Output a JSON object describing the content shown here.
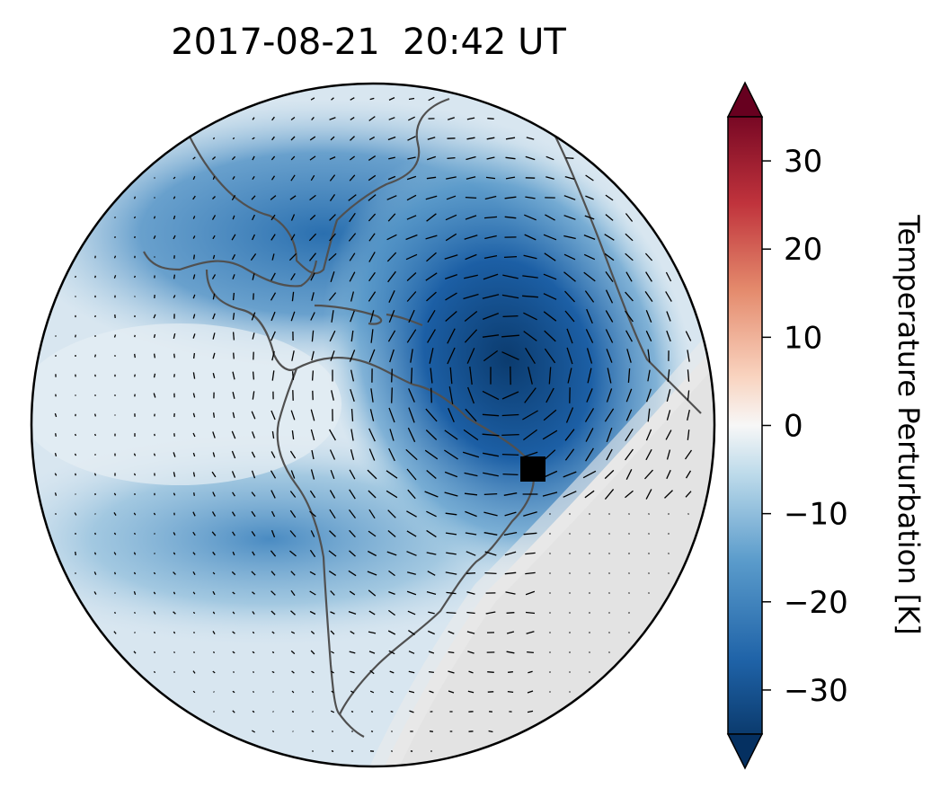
{
  "title": "2017-08-21  20:42 UT",
  "colorbar": {
    "label": "Temperature Perturbation [K]",
    "vmin": -35,
    "vmax": 35,
    "extend": "both",
    "colormap": "RdBu_r",
    "ticks": [
      30,
      20,
      10,
      0,
      -10,
      -20,
      -30
    ],
    "tick_labels": [
      "30",
      "20",
      "10",
      "0",
      "−10",
      "−20",
      "−30"
    ]
  },
  "map": {
    "projection": "orthographic",
    "region": "Americas and Atlantic Ocean",
    "coastlines": true,
    "wind_vectors": true,
    "marker": {
      "shape": "square",
      "color": "#000000",
      "location": "coast of eastern Brazil"
    },
    "night_shading_color": "#e3e3e3"
  }
}
